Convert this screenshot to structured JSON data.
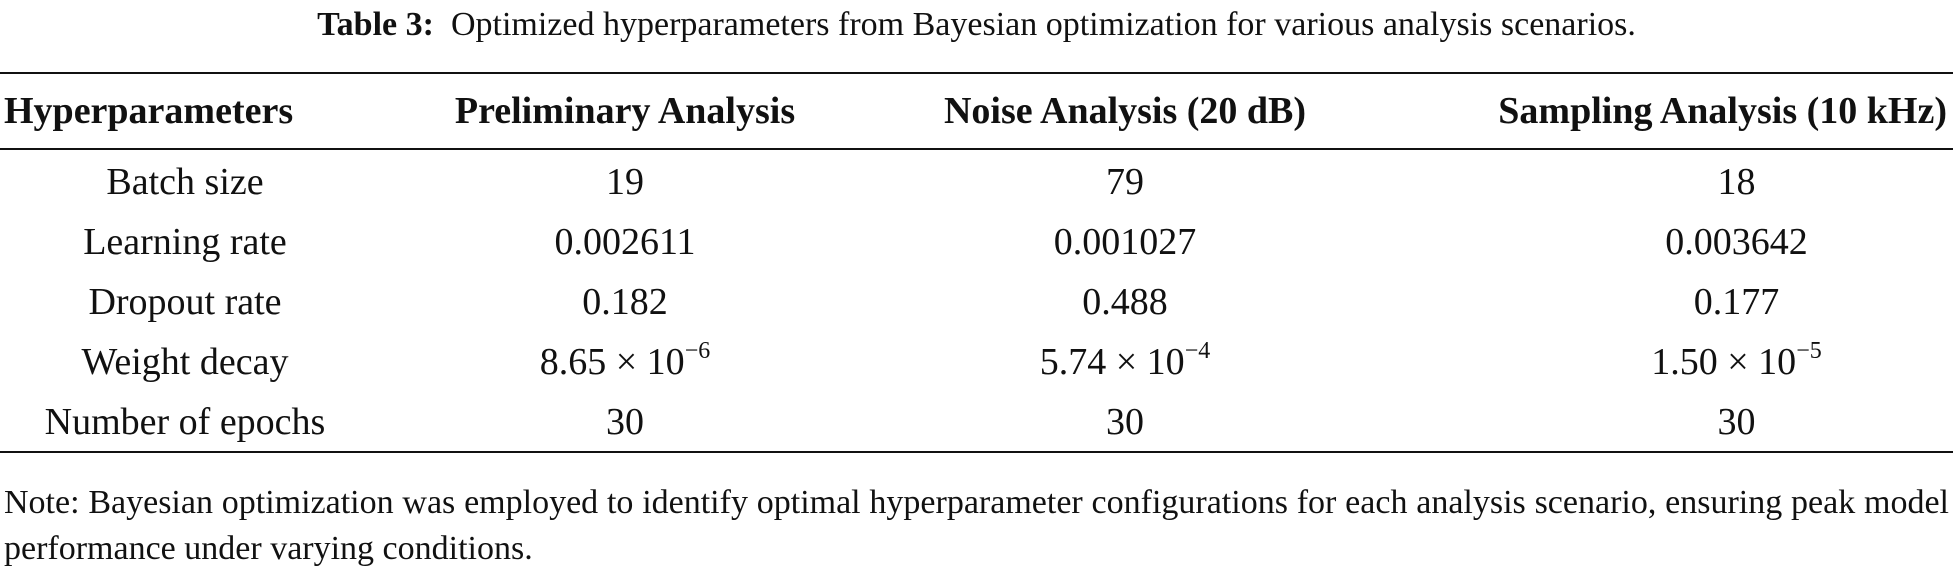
{
  "caption": {
    "label": "Table 3:",
    "text": "Optimized hyperparameters from Bayesian optimization for various analysis scenarios."
  },
  "table": {
    "headers": [
      "Hyperparameters",
      "Preliminary Analysis",
      "Noise Analysis (20 dB)",
      "Sampling Analysis (10 kHz)"
    ],
    "rows": [
      {
        "label": "Batch size",
        "preliminary": "19",
        "noise": "79",
        "sampling": "18"
      },
      {
        "label": "Learning rate",
        "preliminary": "0.002611",
        "noise": "0.001027",
        "sampling": "0.003642"
      },
      {
        "label": "Dropout rate",
        "preliminary": "0.182",
        "noise": "0.488",
        "sampling": "0.177"
      },
      {
        "label": "Weight decay",
        "preliminary": {
          "mantissa": "8.65 × 10",
          "exponent": "−6"
        },
        "noise": {
          "mantissa": "5.74 × 10",
          "exponent": "−4"
        },
        "sampling": {
          "mantissa": "1.50 × 10",
          "exponent": "−5"
        }
      },
      {
        "label": "Number of epochs",
        "preliminary": "30",
        "noise": "30",
        "sampling": "30"
      }
    ]
  },
  "note": "Note: Bayesian optimization was employed to identify optimal hyperparameter configurations for each analysis scenario, ensuring peak model performance under varying conditions."
}
